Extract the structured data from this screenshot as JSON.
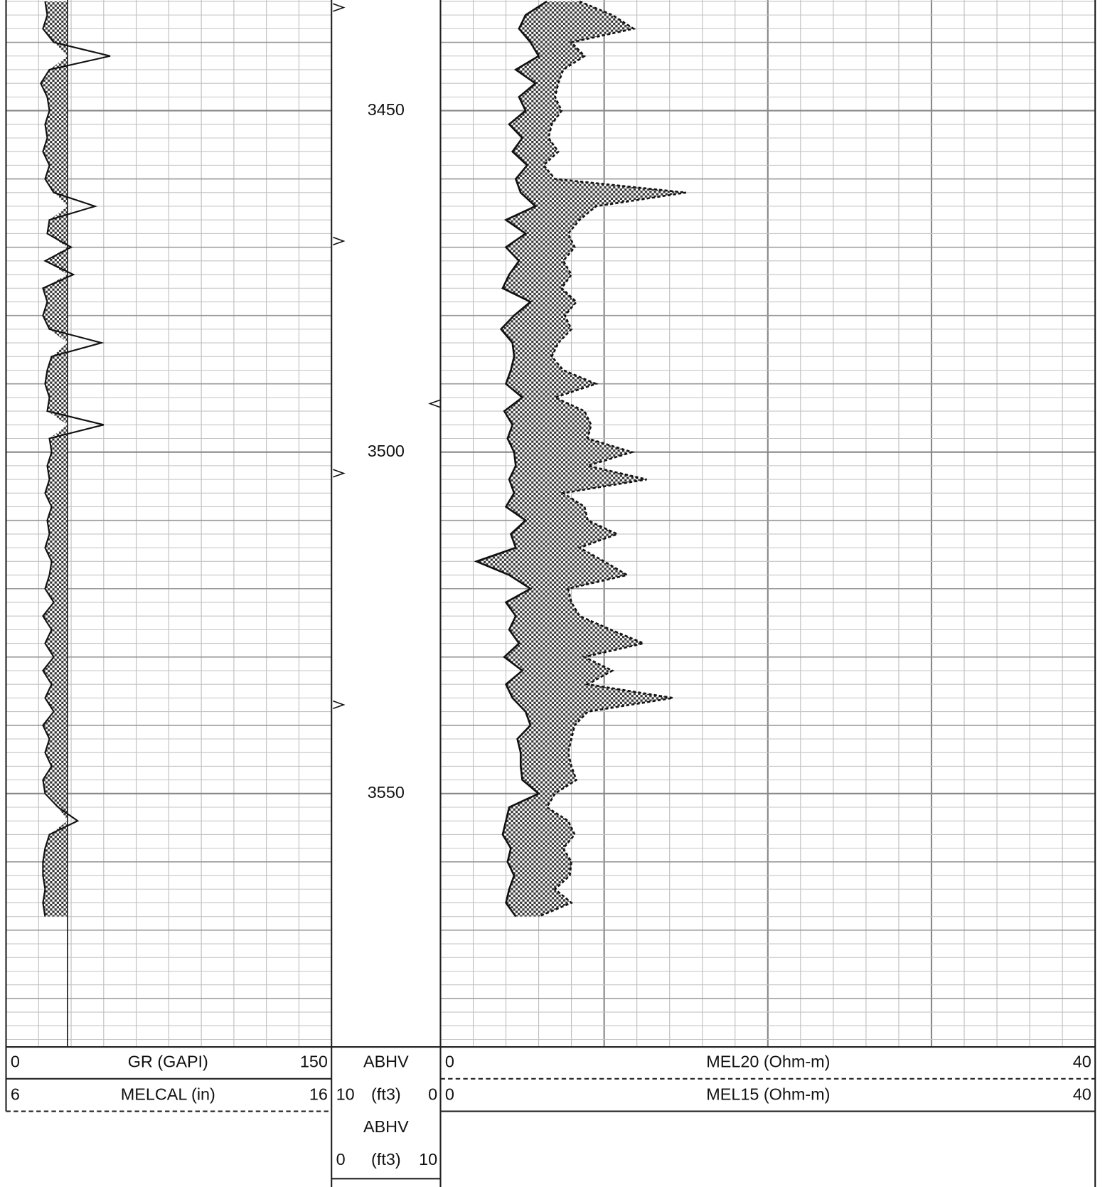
{
  "chart_data": {
    "type": "well-log",
    "depth": [
      3434,
      3436,
      3438,
      3440,
      3442,
      3444,
      3446,
      3448,
      3450,
      3452,
      3454,
      3456,
      3458,
      3460,
      3462,
      3464,
      3466,
      3468,
      3470,
      3472,
      3474,
      3476,
      3478,
      3480,
      3482,
      3484,
      3486,
      3488,
      3490,
      3492,
      3494,
      3496,
      3498,
      3500,
      3502,
      3504,
      3506,
      3508,
      3510,
      3512,
      3514,
      3516,
      3518,
      3520,
      3522,
      3524,
      3526,
      3528,
      3530,
      3532,
      3534,
      3536,
      3538,
      3540,
      3542,
      3544,
      3546,
      3548,
      3550,
      3552,
      3554,
      3556,
      3558,
      3560,
      3562,
      3564,
      3566,
      3568
    ],
    "depth_lim": [
      3433.8,
      3587.1
    ],
    "depth_ticks": [
      3450,
      3500,
      3550
    ],
    "tracks": [
      {
        "fill_baseline": 28.3,
        "curves": [
          {
            "name": "GR (GAPI)",
            "xlim": [
              0,
              150
            ],
            "line": "solid",
            "values": [
              18,
              19,
              17,
              22,
              48,
              20,
              16,
              19,
              20,
              18,
              19,
              17,
              20,
              18,
              22,
              41,
              20,
              19,
              30,
              18,
              31,
              17,
              19,
              17,
              20,
              44,
              21,
              19,
              18,
              20,
              19,
              45,
              20,
              21,
              19,
              20,
              18,
              21,
              19,
              20,
              18,
              21,
              20,
              18,
              22,
              17,
              21,
              18,
              22,
              17,
              21,
              18,
              22,
              17,
              20,
              18,
              21,
              17,
              18,
              24,
              33,
              20,
              18,
              17,
              17,
              18,
              17,
              18
            ]
          },
          {
            "name": "MELCAL (in)",
            "xlim": [
              6,
              16
            ],
            "line": "dashed"
          }
        ]
      },
      {
        "curves": [
          {
            "name": "MEL20 (Ohm-m)",
            "xlim": [
              0,
              40
            ],
            "line": "dashed",
            "values": [
              8.5,
              10.5,
              11.8,
              8.0,
              8.8,
              7.5,
              7.2,
              7.0,
              7.4,
              6.8,
              6.6,
              7.2,
              6.3,
              7.0,
              15.0,
              9.5,
              8.5,
              7.8,
              8.2,
              7.5,
              8.0,
              7.4,
              8.3,
              7.6,
              8.0,
              7.2,
              6.8,
              7.5,
              9.5,
              7.0,
              8.8,
              9.2,
              9.0,
              11.7,
              9.0,
              12.6,
              7.5,
              8.8,
              9.0,
              10.8,
              8.5,
              10.0,
              11.4,
              7.8,
              8.0,
              8.5,
              10.4,
              12.4,
              8.8,
              10.5,
              9.0,
              14.2,
              9.0,
              8.2,
              8.0,
              7.8,
              8.0,
              8.3,
              7.0,
              6.5,
              7.8,
              8.2,
              7.5,
              8.0,
              7.9,
              7.0,
              8.0,
              6.0
            ]
          },
          {
            "name": "MEL15 (Ohm-m)",
            "xlim": [
              0,
              40
            ],
            "line": "solid",
            "values": [
              6.5,
              5.2,
              4.8,
              5.5,
              6.0,
              4.6,
              5.8,
              4.8,
              5.2,
              4.2,
              5.0,
              4.4,
              5.3,
              4.6,
              4.9,
              5.8,
              4.0,
              5.2,
              4.0,
              4.8,
              4.2,
              3.8,
              5.5,
              4.5,
              3.7,
              4.4,
              4.5,
              4.3,
              4.0,
              5.0,
              3.9,
              4.4,
              4.1,
              4.5,
              4.6,
              4.2,
              4.5,
              4.0,
              5.2,
              4.3,
              4.6,
              2.2,
              4.2,
              5.5,
              4.0,
              4.6,
              4.2,
              4.8,
              3.9,
              5.0,
              4.0,
              4.4,
              5.2,
              5.5,
              4.7,
              4.9,
              4.9,
              5.0,
              6.0,
              4.2,
              4.0,
              3.8,
              4.3,
              4.1,
              4.5,
              4.2,
              4.0,
              4.6
            ]
          }
        ]
      }
    ],
    "abhv": [
      {
        "name": "ABHV",
        "unit": "(ft3)",
        "xlim": [
          10,
          0
        ],
        "ticks": [
          3434.9,
          3469.1,
          3503.1,
          3537.0
        ]
      },
      {
        "name": "ABHV",
        "unit": "(ft3)",
        "xlim": [
          0,
          10
        ],
        "ticks": [
          3492.9
        ]
      }
    ]
  }
}
